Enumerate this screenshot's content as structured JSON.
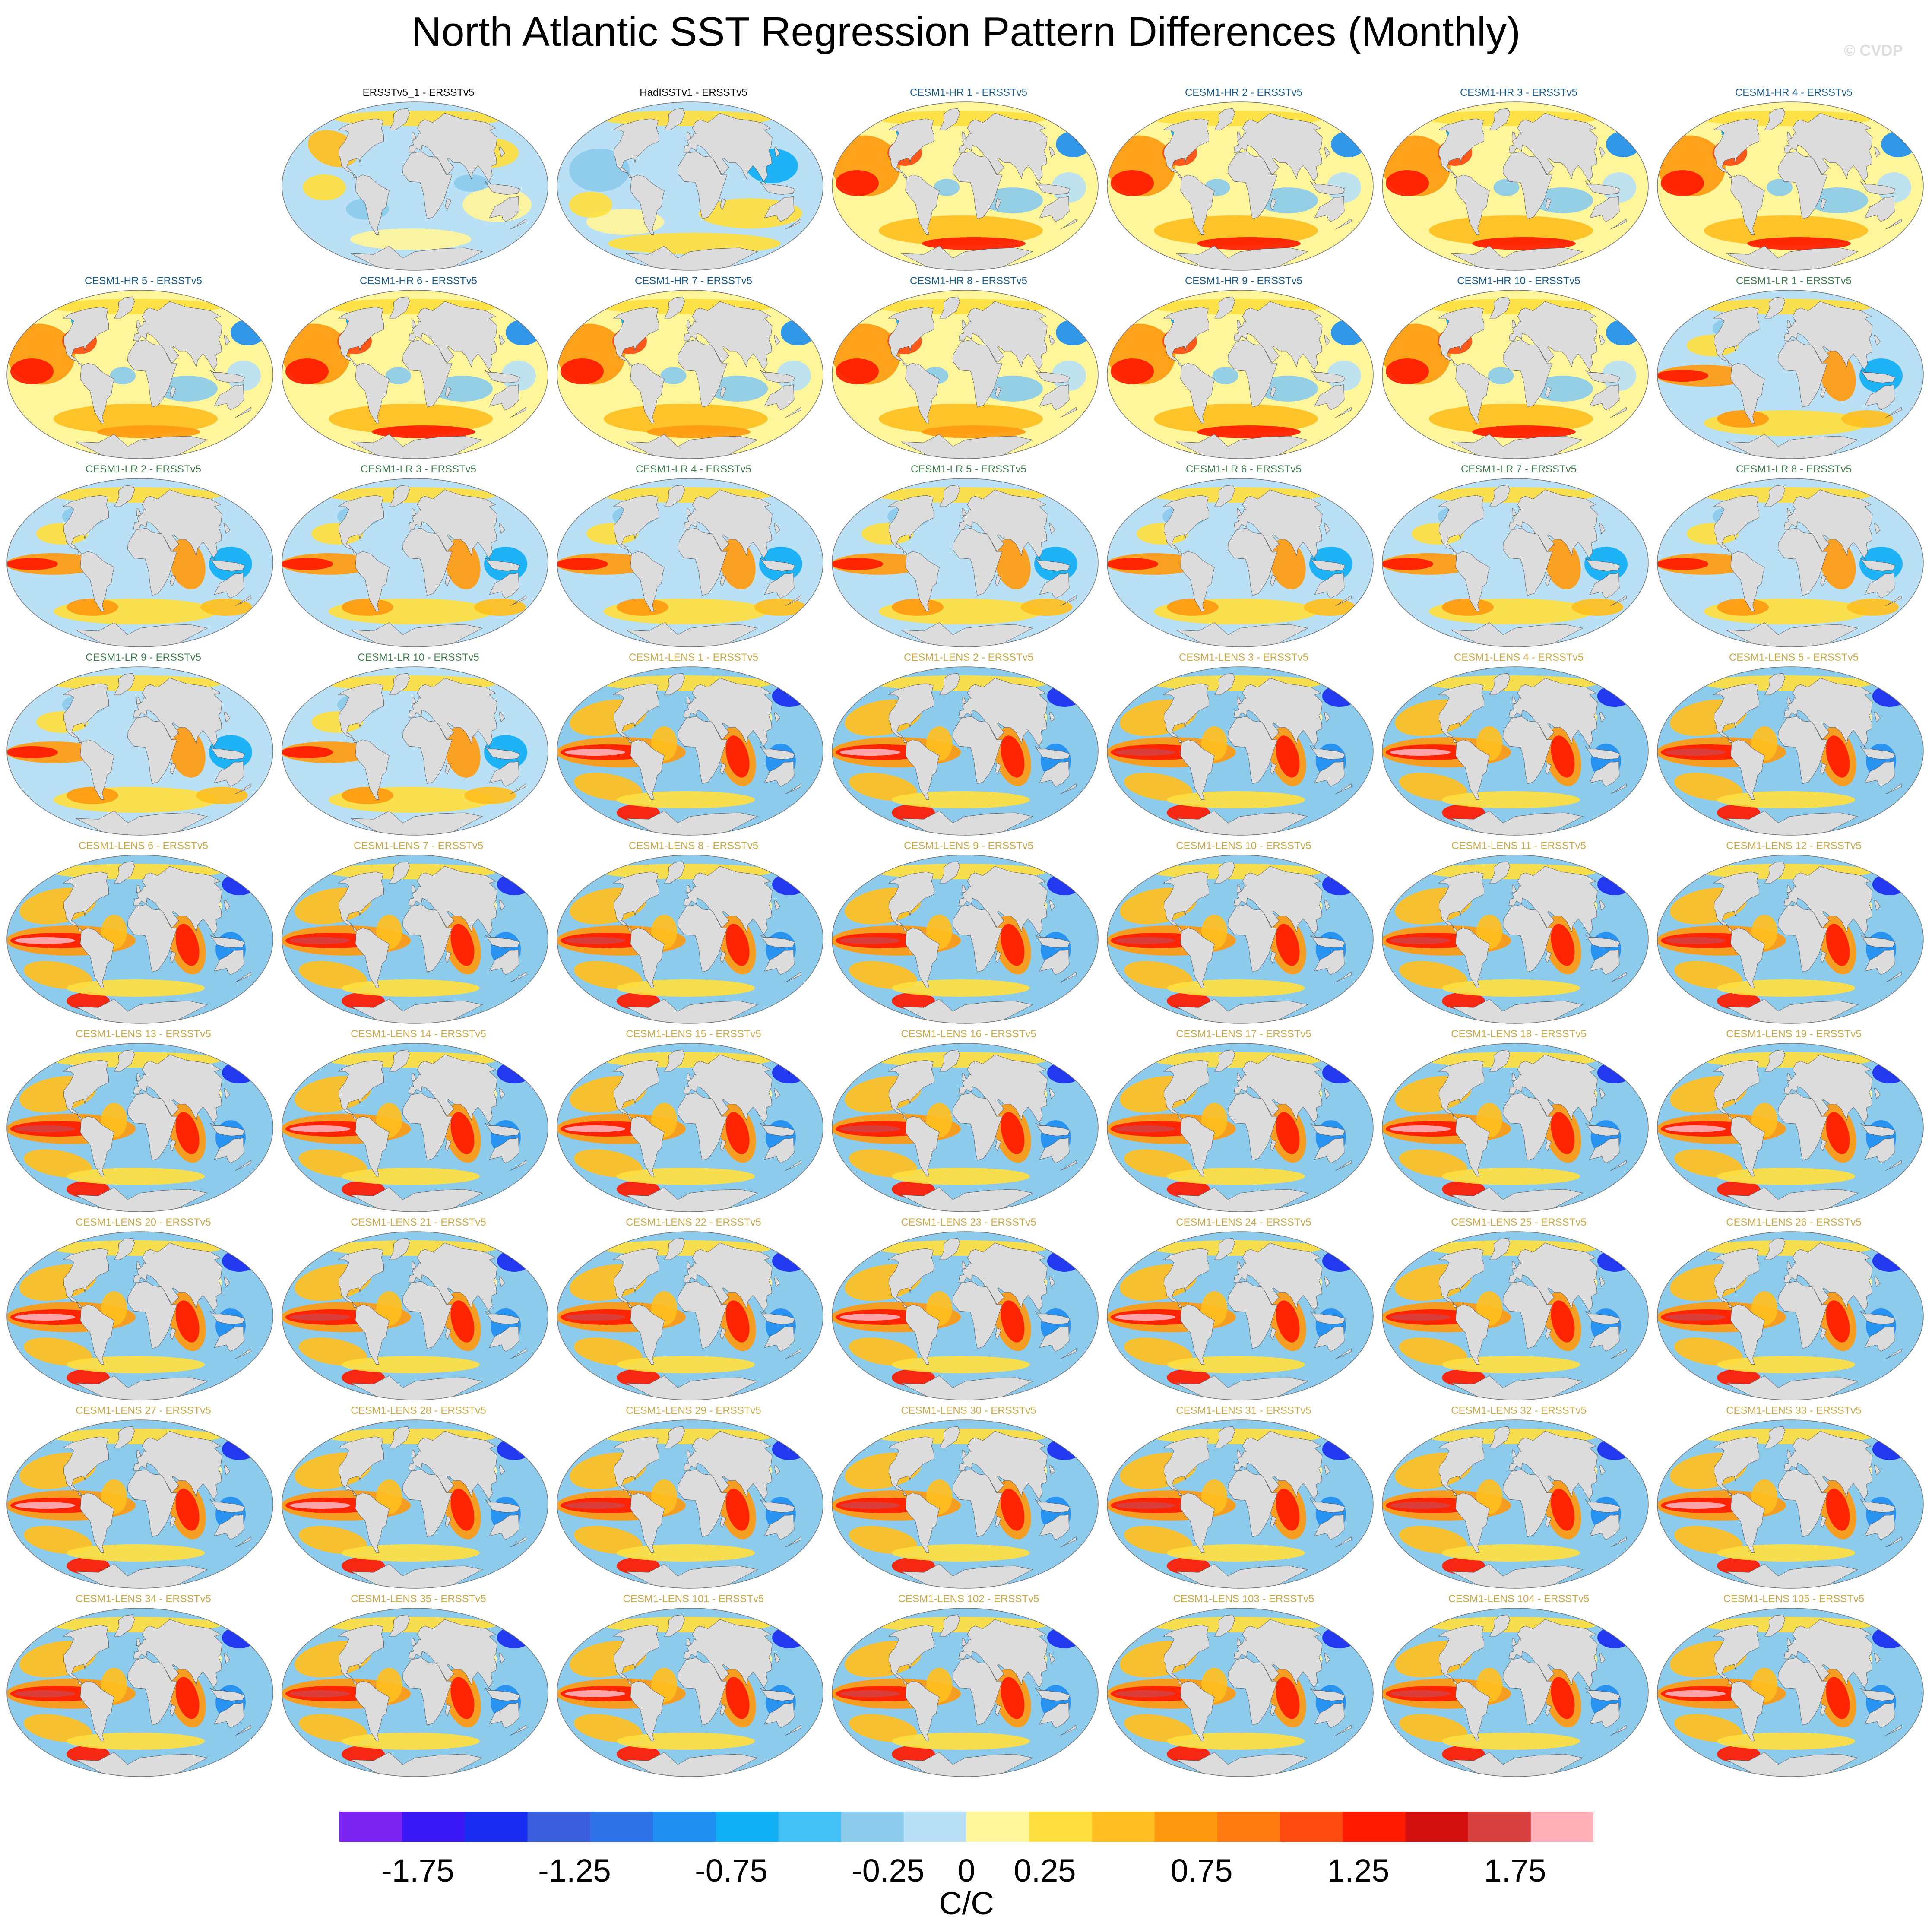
{
  "title": "North Atlantic SST Regression Pattern Differences (Monthly)",
  "watermark": "© CVDP",
  "chart_data": {
    "type": "heatmap",
    "title": "North Atlantic SST Regression Pattern Differences (Monthly)",
    "projection": "global map, Robinson-like",
    "panel_grid": {
      "rows": 9,
      "cols": 7
    },
    "panels": [
      {
        "label": "ERSSTv5_1 - ERSSTv5",
        "group": "obs",
        "pattern": "obsA"
      },
      {
        "label": "HadISSTv1 - ERSSTv5",
        "group": "obs",
        "pattern": "obsB"
      },
      {
        "label": "CESM1-HR 1 - ERSSTv5",
        "group": "HR",
        "pattern": "hr"
      },
      {
        "label": "CESM1-HR 2 - ERSSTv5",
        "group": "HR",
        "pattern": "hr"
      },
      {
        "label": "CESM1-HR 3 - ERSSTv5",
        "group": "HR",
        "pattern": "hr"
      },
      {
        "label": "CESM1-HR 4 - ERSSTv5",
        "group": "HR",
        "pattern": "hr"
      },
      {
        "label": "CESM1-HR 5 - ERSSTv5",
        "group": "HR",
        "pattern": "hr"
      },
      {
        "label": "CESM1-HR 6 - ERSSTv5",
        "group": "HR",
        "pattern": "hr"
      },
      {
        "label": "CESM1-HR 7 - ERSSTv5",
        "group": "HR",
        "pattern": "hr"
      },
      {
        "label": "CESM1-HR 8 - ERSSTv5",
        "group": "HR",
        "pattern": "hr"
      },
      {
        "label": "CESM1-HR 9 - ERSSTv5",
        "group": "HR",
        "pattern": "hr"
      },
      {
        "label": "CESM1-HR 10 - ERSSTv5",
        "group": "HR",
        "pattern": "hr"
      },
      {
        "label": "CESM1-LR 1 - ERSSTv5",
        "group": "LR",
        "pattern": "lr"
      },
      {
        "label": "CESM1-LR 2 - ERSSTv5",
        "group": "LR",
        "pattern": "lr"
      },
      {
        "label": "CESM1-LR 3 - ERSSTv5",
        "group": "LR",
        "pattern": "lr"
      },
      {
        "label": "CESM1-LR 4 - ERSSTv5",
        "group": "LR",
        "pattern": "lr"
      },
      {
        "label": "CESM1-LR 5 - ERSSTv5",
        "group": "LR",
        "pattern": "lr"
      },
      {
        "label": "CESM1-LR 6 - ERSSTv5",
        "group": "LR",
        "pattern": "lr"
      },
      {
        "label": "CESM1-LR 7 - ERSSTv5",
        "group": "LR",
        "pattern": "lr"
      },
      {
        "label": "CESM1-LR 8 - ERSSTv5",
        "group": "LR",
        "pattern": "lr"
      },
      {
        "label": "CESM1-LR 9 - ERSSTv5",
        "group": "LR",
        "pattern": "lr"
      },
      {
        "label": "CESM1-LR 10 - ERSSTv5",
        "group": "LR",
        "pattern": "lr"
      },
      {
        "label": "CESM1-LENS 1 - ERSSTv5",
        "group": "LENS",
        "pattern": "lens"
      },
      {
        "label": "CESM1-LENS 2 - ERSSTv5",
        "group": "LENS",
        "pattern": "lens"
      },
      {
        "label": "CESM1-LENS 3 - ERSSTv5",
        "group": "LENS",
        "pattern": "lens"
      },
      {
        "label": "CESM1-LENS 4 - ERSSTv5",
        "group": "LENS",
        "pattern": "lens"
      },
      {
        "label": "CESM1-LENS 5 - ERSSTv5",
        "group": "LENS",
        "pattern": "lens"
      },
      {
        "label": "CESM1-LENS 6 - ERSSTv5",
        "group": "LENS",
        "pattern": "lens"
      },
      {
        "label": "CESM1-LENS 7 - ERSSTv5",
        "group": "LENS",
        "pattern": "lens"
      },
      {
        "label": "CESM1-LENS 8 - ERSSTv5",
        "group": "LENS",
        "pattern": "lens"
      },
      {
        "label": "CESM1-LENS 9 - ERSSTv5",
        "group": "LENS",
        "pattern": "lens"
      },
      {
        "label": "CESM1-LENS 10 - ERSSTv5",
        "group": "LENS",
        "pattern": "lens"
      },
      {
        "label": "CESM1-LENS 11 - ERSSTv5",
        "group": "LENS",
        "pattern": "lens"
      },
      {
        "label": "CESM1-LENS 12 - ERSSTv5",
        "group": "LENS",
        "pattern": "lens"
      },
      {
        "label": "CESM1-LENS 13 - ERSSTv5",
        "group": "LENS",
        "pattern": "lens"
      },
      {
        "label": "CESM1-LENS 14 - ERSSTv5",
        "group": "LENS",
        "pattern": "lens"
      },
      {
        "label": "CESM1-LENS 15 - ERSSTv5",
        "group": "LENS",
        "pattern": "lens"
      },
      {
        "label": "CESM1-LENS 16 - ERSSTv5",
        "group": "LENS",
        "pattern": "lens"
      },
      {
        "label": "CESM1-LENS 17 - ERSSTv5",
        "group": "LENS",
        "pattern": "lens"
      },
      {
        "label": "CESM1-LENS 18 - ERSSTv5",
        "group": "LENS",
        "pattern": "lens"
      },
      {
        "label": "CESM1-LENS 19 - ERSSTv5",
        "group": "LENS",
        "pattern": "lens"
      },
      {
        "label": "CESM1-LENS 20 - ERSSTv5",
        "group": "LENS",
        "pattern": "lens"
      },
      {
        "label": "CESM1-LENS 21 - ERSSTv5",
        "group": "LENS",
        "pattern": "lens"
      },
      {
        "label": "CESM1-LENS 22 - ERSSTv5",
        "group": "LENS",
        "pattern": "lens"
      },
      {
        "label": "CESM1-LENS 23 - ERSSTv5",
        "group": "LENS",
        "pattern": "lens"
      },
      {
        "label": "CESM1-LENS 24 - ERSSTv5",
        "group": "LENS",
        "pattern": "lens"
      },
      {
        "label": "CESM1-LENS 25 - ERSSTv5",
        "group": "LENS",
        "pattern": "lens"
      },
      {
        "label": "CESM1-LENS 26 - ERSSTv5",
        "group": "LENS",
        "pattern": "lens"
      },
      {
        "label": "CESM1-LENS 27 - ERSSTv5",
        "group": "LENS",
        "pattern": "lens"
      },
      {
        "label": "CESM1-LENS 28 - ERSSTv5",
        "group": "LENS",
        "pattern": "lens"
      },
      {
        "label": "CESM1-LENS 29 - ERSSTv5",
        "group": "LENS",
        "pattern": "lens"
      },
      {
        "label": "CESM1-LENS 30 - ERSSTv5",
        "group": "LENS",
        "pattern": "lens"
      },
      {
        "label": "CESM1-LENS 31 - ERSSTv5",
        "group": "LENS",
        "pattern": "lens"
      },
      {
        "label": "CESM1-LENS 32 - ERSSTv5",
        "group": "LENS",
        "pattern": "lens"
      },
      {
        "label": "CESM1-LENS 33 - ERSSTv5",
        "group": "LENS",
        "pattern": "lens"
      },
      {
        "label": "CESM1-LENS 34 - ERSSTv5",
        "group": "LENS",
        "pattern": "lens"
      },
      {
        "label": "CESM1-LENS 35 - ERSSTv5",
        "group": "LENS",
        "pattern": "lens"
      },
      {
        "label": "CESM1-LENS 101 - ERSSTv5",
        "group": "LENS",
        "pattern": "lens"
      },
      {
        "label": "CESM1-LENS 102 - ERSSTv5",
        "group": "LENS",
        "pattern": "lens"
      },
      {
        "label": "CESM1-LENS 103 - ERSSTv5",
        "group": "LENS",
        "pattern": "lens"
      },
      {
        "label": "CESM1-LENS 104 - ERSSTv5",
        "group": "LENS",
        "pattern": "lens"
      },
      {
        "label": "CESM1-LENS 105 - ERSSTv5",
        "group": "LENS",
        "pattern": "lens"
      }
    ],
    "group_title_colors": {
      "obs": "#000000",
      "HR": "#1a5a8a",
      "LR": "#3f7a4c",
      "LENS": "#c9a84a"
    },
    "colorbar": {
      "levels": [
        -2.0,
        -1.75,
        -1.5,
        -1.25,
        -1.0,
        -0.75,
        -0.5,
        -0.25,
        0,
        0.25,
        0.5,
        0.75,
        1.0,
        1.25,
        1.5,
        1.75,
        2.0
      ],
      "colors": [
        "#7a22f0",
        "#3a18f5",
        "#1a2cf0",
        "#3b5edd",
        "#2f73e8",
        "#1f8ef0",
        "#10aef5",
        "#43c0f5",
        "#8ccbeb",
        "#b9e0f5",
        "#fff59a",
        "#ffe040",
        "#ffbf20",
        "#ff9a10",
        "#ff7a10",
        "#ff4a10",
        "#ff1a00",
        "#d40f0f",
        "#d84040",
        "#ffb0b8"
      ],
      "tick_labels": [
        "-1.75",
        "-1.25",
        "-0.75",
        "-0.25",
        "0",
        "0.25",
        "0.75",
        "1.25",
        "1.75"
      ],
      "units": "C/C"
    },
    "land_color": "#dcdcdc"
  }
}
